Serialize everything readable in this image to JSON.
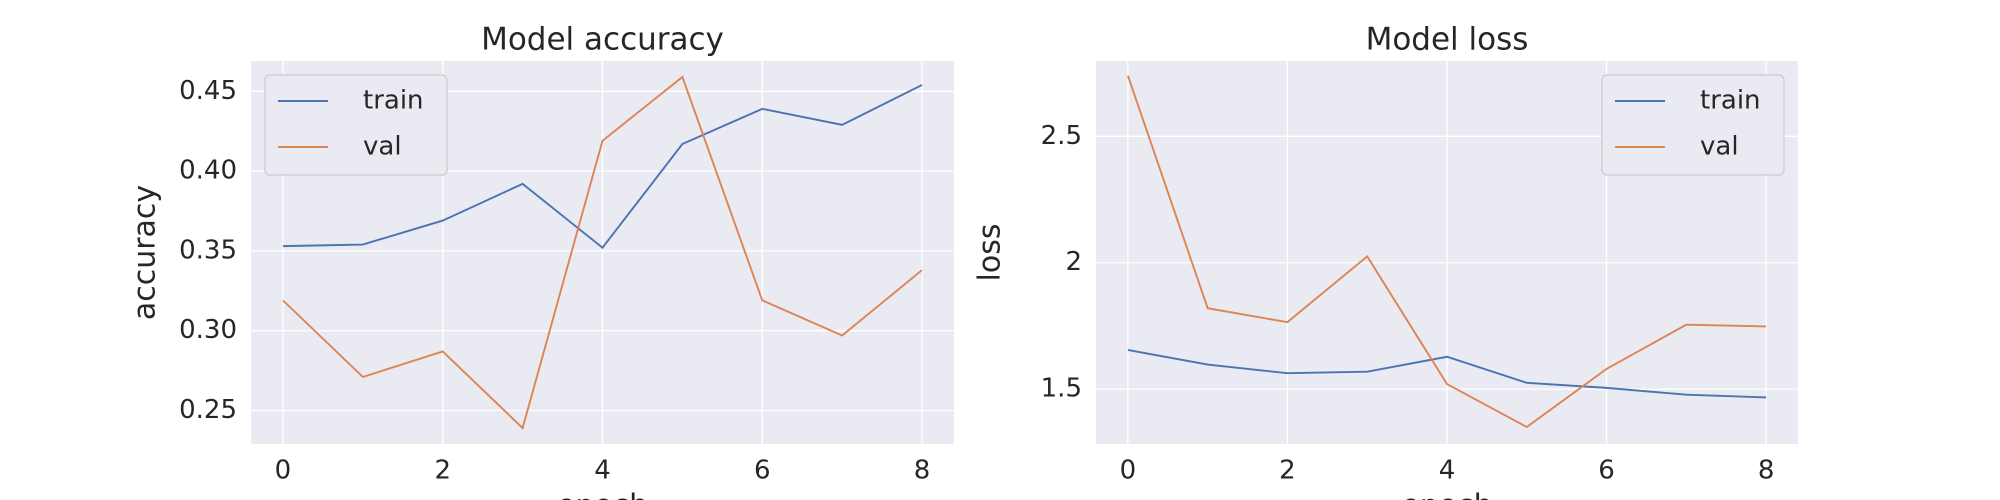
{
  "chart_data": [
    {
      "type": "line",
      "title": "Model accuracy",
      "xlabel": "epoch",
      "ylabel": "accuracy",
      "x": [
        0,
        1,
        2,
        3,
        4,
        5,
        6,
        7,
        8
      ],
      "series": [
        {
          "name": "train",
          "color": "#4c72b0",
          "values": [
            0.353,
            0.354,
            0.369,
            0.392,
            0.352,
            0.417,
            0.439,
            0.429,
            0.454
          ]
        },
        {
          "name": "val",
          "color": "#dd8452",
          "values": [
            0.319,
            0.271,
            0.287,
            0.239,
            0.419,
            0.459,
            0.319,
            0.297,
            0.338
          ]
        }
      ],
      "xlim": [
        -0.4,
        8.4
      ],
      "ylim": [
        0.229,
        0.469
      ],
      "xticks": [
        0,
        2,
        4,
        6,
        8
      ],
      "yticks": [
        {
          "value": 0.25,
          "label": "0.25"
        },
        {
          "value": 0.3,
          "label": "0.30"
        },
        {
          "value": 0.35,
          "label": "0.35"
        },
        {
          "value": 0.4,
          "label": "0.40"
        },
        {
          "value": 0.45,
          "label": "0.45"
        }
      ],
      "grid": true,
      "legend": "upper-left"
    },
    {
      "type": "line",
      "title": "Model loss",
      "xlabel": "epoch",
      "ylabel": "loss",
      "x": [
        0,
        1,
        2,
        3,
        4,
        5,
        6,
        7,
        8
      ],
      "series": [
        {
          "name": "train",
          "color": "#4c72b0",
          "values": [
            1.655,
            1.597,
            1.563,
            1.569,
            1.628,
            1.525,
            1.505,
            1.478,
            1.467
          ]
        },
        {
          "name": "val",
          "color": "#dd8452",
          "values": [
            2.74,
            1.82,
            1.765,
            2.025,
            1.52,
            1.35,
            1.58,
            1.755,
            1.748
          ]
        }
      ],
      "xlim": [
        -0.4,
        8.4
      ],
      "ylim": [
        1.283,
        2.798
      ],
      "xticks": [
        0,
        2,
        4,
        6,
        8
      ],
      "yticks": [
        1.5,
        2.0,
        2.5
      ],
      "grid": true,
      "legend": "upper-right"
    }
  ]
}
